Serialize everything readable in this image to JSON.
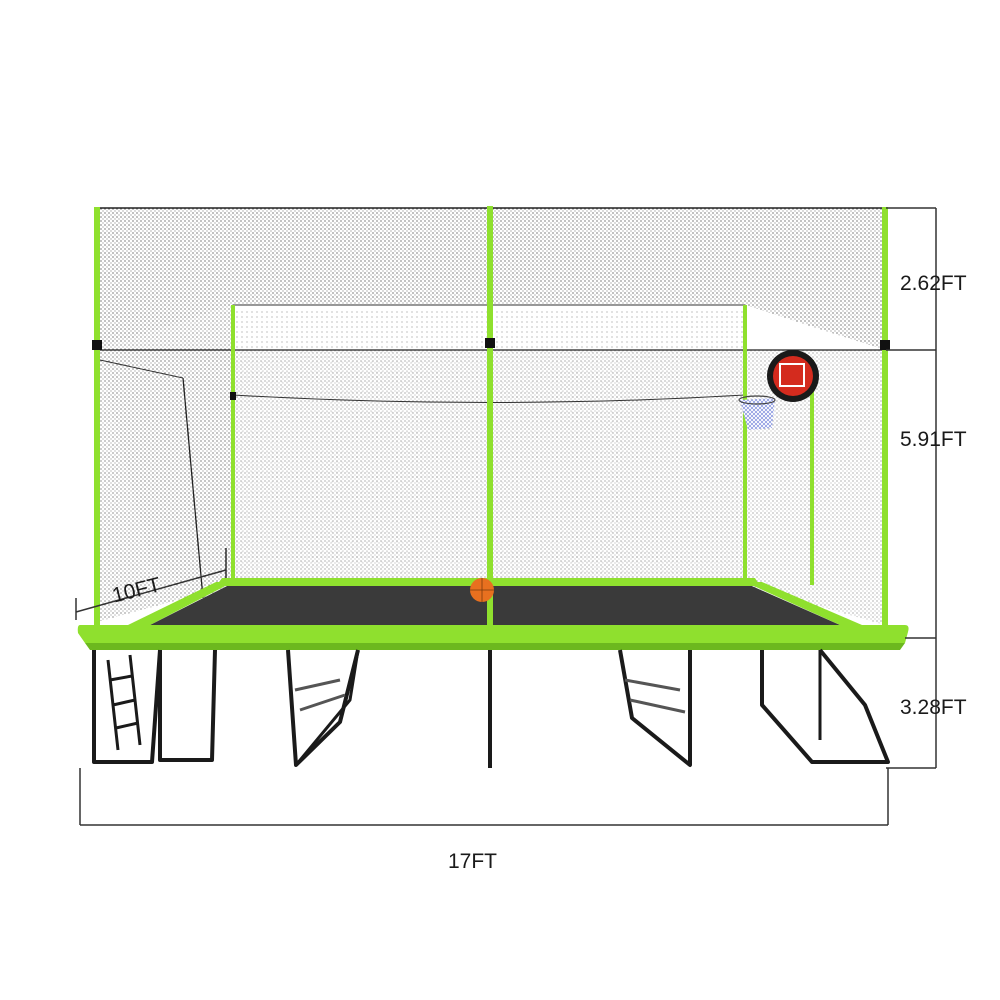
{
  "image": {
    "subject": "rectangular-trampoline-with-enclosure-net-and-basketball-hoop",
    "colors": {
      "frame_green": "#8fe02e",
      "frame_green_dark": "#6cb81e",
      "mat": "#3a3a3a",
      "net": "#2b2b2b",
      "legs": "#1a1a1a",
      "ball": "#e8701f",
      "hoop_red": "#d42b1e",
      "dimension_line": "#333333"
    }
  },
  "dimensions": {
    "net_top_height": "2.62FT",
    "net_height": "5.91FT",
    "frame_height": "3.28FT",
    "length": "17FT",
    "width": "10FT"
  }
}
